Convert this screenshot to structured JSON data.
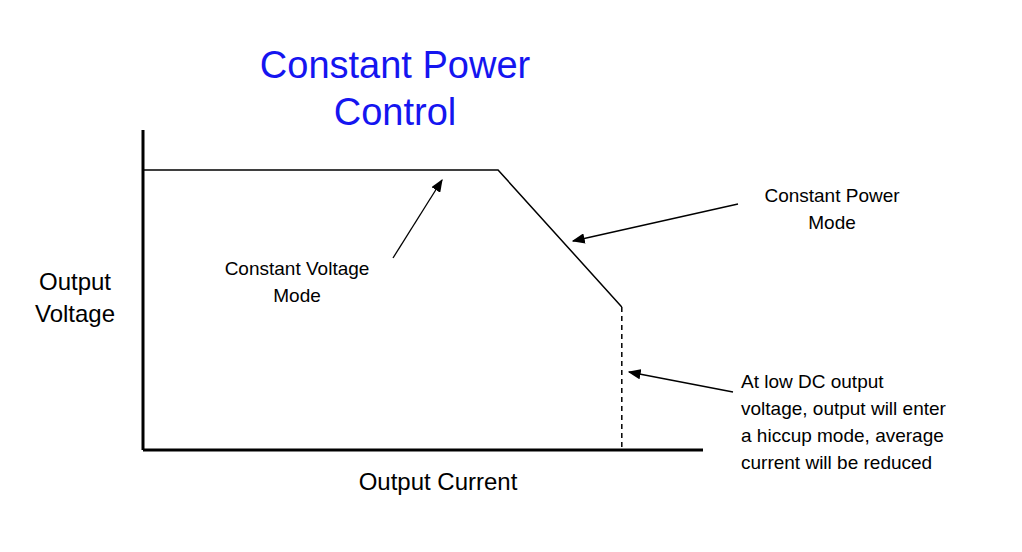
{
  "chart_data": {
    "type": "line",
    "title": [
      "Constant Power",
      "Control"
    ],
    "x_label": "Output Current",
    "y_label": [
      "Output",
      "Voltage"
    ],
    "xlim": [
      0,
      100
    ],
    "ylim": [
      0,
      100
    ],
    "tick_labels": false,
    "grid": false,
    "series": [
      {
        "x": [
          0,
          63.4,
          85.5
        ],
        "values": [
          87.5,
          87.5,
          44.7
        ],
        "color": "#000000",
        "line_style": "solid"
      },
      {
        "x": [
          85.5,
          85.5
        ],
        "values": [
          44.7,
          0
        ],
        "color": "#000000",
        "line_style": "dashed"
      }
    ],
    "annotations": [
      {
        "text": [
          "Constant Voltage",
          "Mode"
        ]
      },
      {
        "text": [
          "Constant Power",
          "Mode"
        ]
      },
      {
        "text": [
          "At low DC output",
          "voltage, output will enter",
          "a hiccup mode, average",
          "current will be reduced"
        ]
      }
    ]
  }
}
